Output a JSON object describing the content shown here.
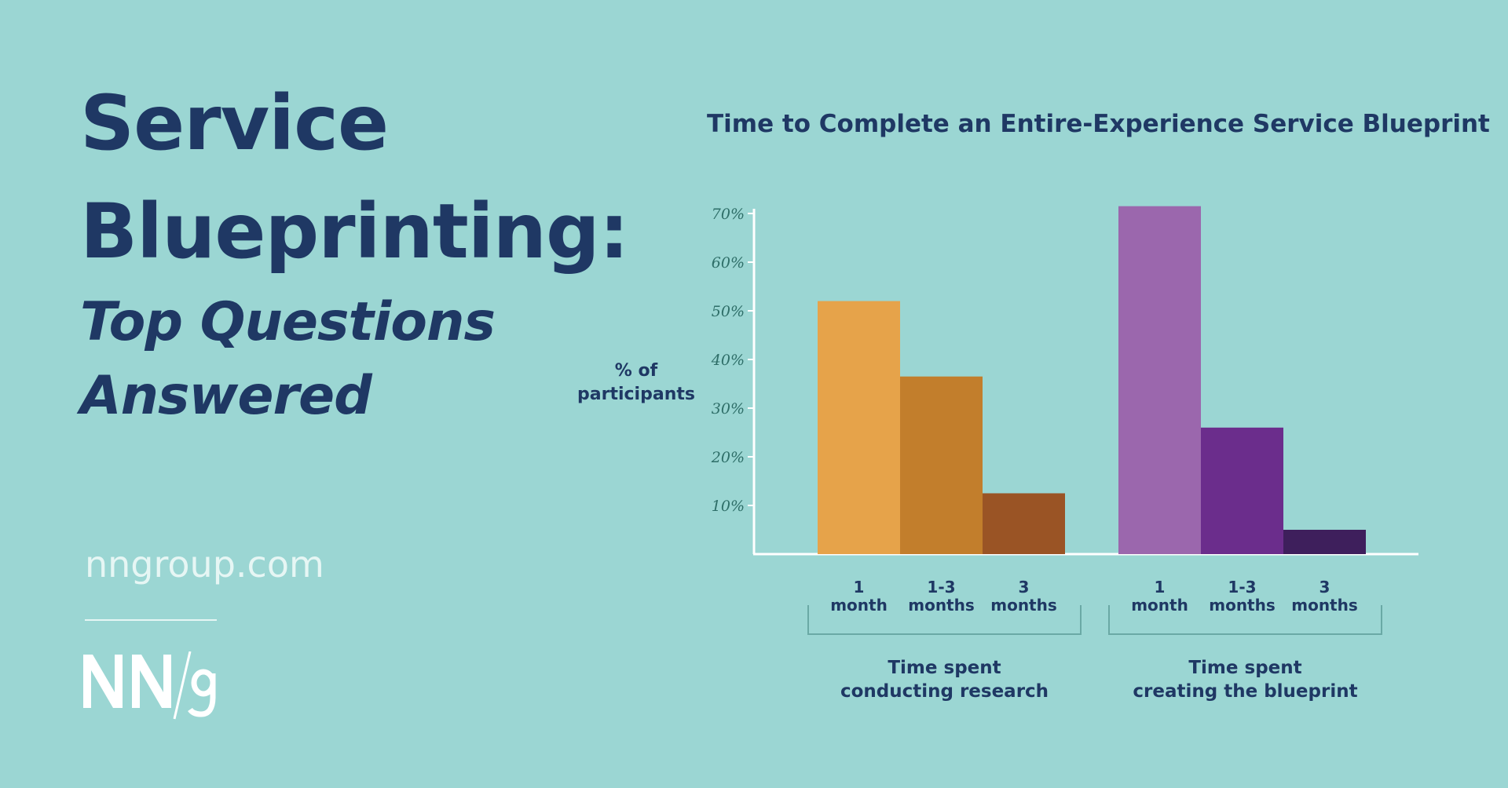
{
  "headline": {
    "title_line1": "Service",
    "title_line2": "Blueprinting:",
    "subtitle_line1": "Top Questions",
    "subtitle_line2": "Answered"
  },
  "footer": {
    "site": "nngroup.com",
    "logo_text": "NN/g"
  },
  "colors": {
    "background": "#9bd6d3",
    "text": "#1f3864",
    "research_1": "#e6a34a",
    "research_2": "#c27e2c",
    "research_3": "#9a5425",
    "blueprint_1": "#9b67ad",
    "blueprint_2": "#6b2d8c",
    "blueprint_3": "#3e1f5c"
  },
  "chart_data": {
    "type": "bar",
    "title": "Time to Complete an Entire-Experience Service Blueprint",
    "ylabel": "% of participants",
    "ylim": [
      0,
      70
    ],
    "yticks": [
      "10%",
      "20%",
      "30%",
      "40%",
      "50%",
      "60%",
      "70%"
    ],
    "grid": false,
    "groups": [
      {
        "label_line1": "Time spent",
        "label_line2": "conducting research",
        "bars": [
          {
            "label_line1": "1",
            "label_line2": "month",
            "value": 52,
            "color": "#e6a34a"
          },
          {
            "label_line1": "1-3",
            "label_line2": "months",
            "value": 36.5,
            "color": "#c27e2c"
          },
          {
            "label_line1": "3",
            "label_line2": "months",
            "value": 12.5,
            "color": "#9a5425"
          }
        ]
      },
      {
        "label_line1": "Time spent",
        "label_line2": "creating the blueprint",
        "bars": [
          {
            "label_line1": "1",
            "label_line2": "month",
            "value": 71.5,
            "color": "#9b67ad"
          },
          {
            "label_line1": "1-3",
            "label_line2": "months",
            "value": 26,
            "color": "#6b2d8c"
          },
          {
            "label_line1": "3",
            "label_line2": "months",
            "value": 5,
            "color": "#3e1f5c"
          }
        ]
      }
    ]
  }
}
